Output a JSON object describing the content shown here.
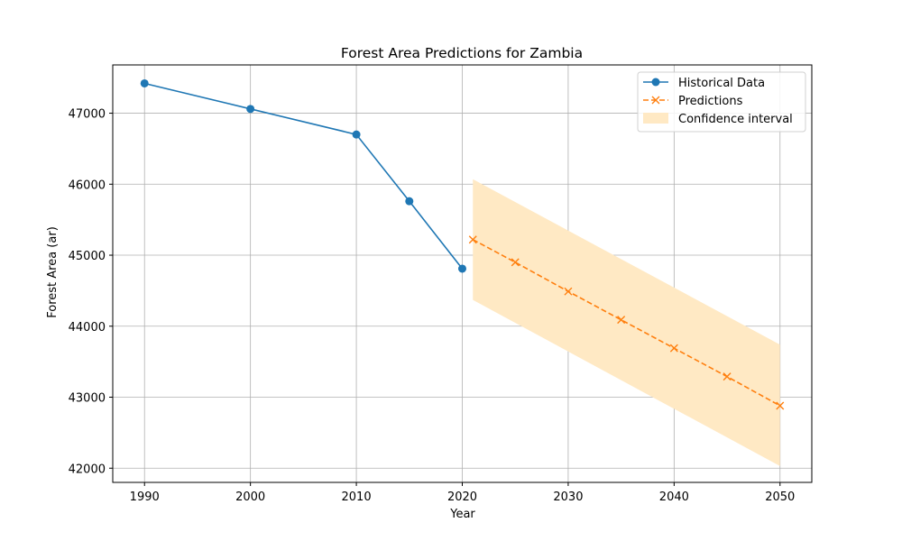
{
  "chart_data": {
    "type": "line",
    "title": "Forest Area Predictions for Zambia",
    "xlabel": "Year",
    "ylabel": "Forest Area (ar)",
    "xlim": [
      1987,
      2053
    ],
    "ylim": [
      41800,
      47680
    ],
    "xticks": [
      1990,
      2000,
      2010,
      2020,
      2030,
      2040,
      2050
    ],
    "yticks": [
      42000,
      43000,
      44000,
      45000,
      46000,
      47000
    ],
    "grid": true,
    "legend_position": "top-right",
    "series": [
      {
        "name": "Historical Data",
        "style": "solid-circle",
        "color": "#1f77b4",
        "x": [
          1990,
          2000,
          2010,
          2015,
          2020
        ],
        "y": [
          47420,
          47060,
          46700,
          45760,
          44810
        ]
      },
      {
        "name": "Predictions",
        "style": "dashed-x",
        "color": "#ff7f0e",
        "x": [
          2021,
          2025,
          2030,
          2035,
          2040,
          2045,
          2050
        ],
        "y": [
          45220,
          44900,
          44490,
          44090,
          43690,
          43290,
          42880
        ]
      }
    ],
    "bands": [
      {
        "name": "Confidence interval",
        "color": "#ffe9c4",
        "x": [
          2021,
          2050
        ],
        "lower": [
          44370,
          42030
        ],
        "upper": [
          46070,
          43740
        ]
      }
    ]
  }
}
